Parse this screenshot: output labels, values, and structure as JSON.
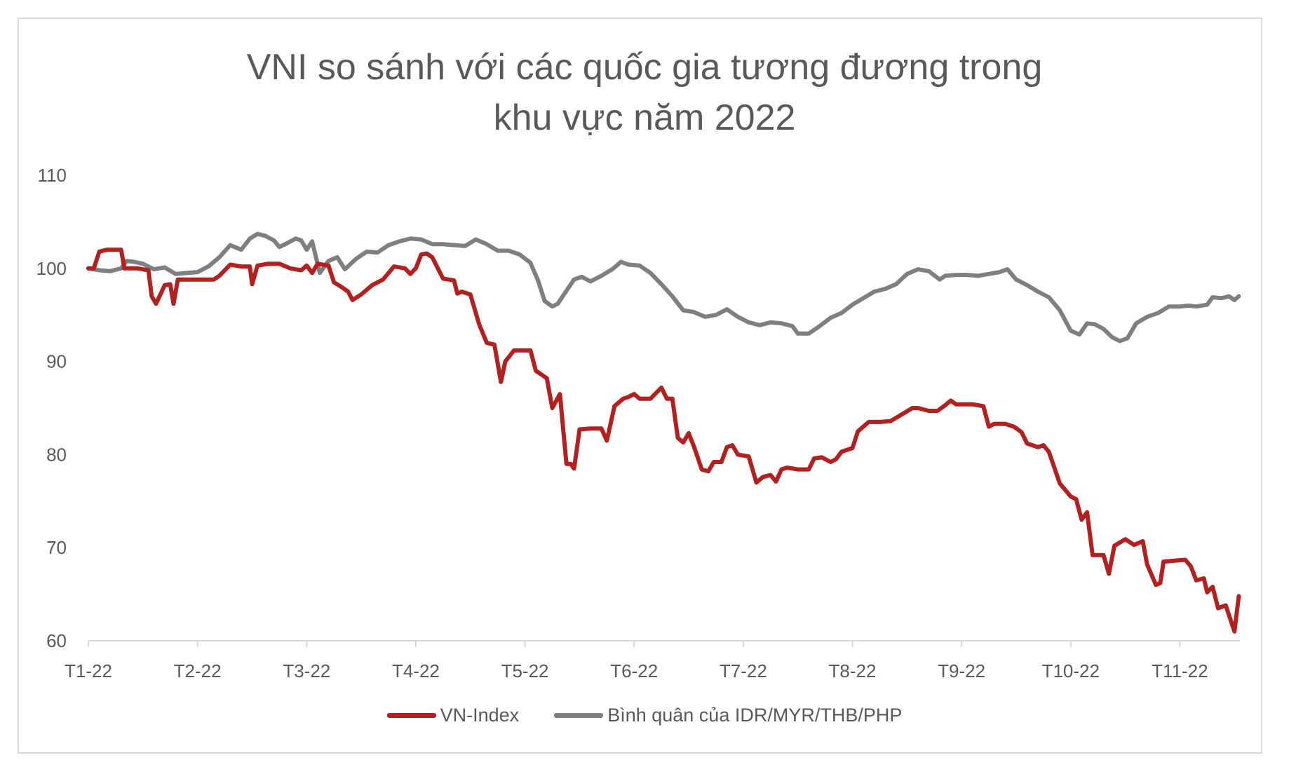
{
  "chart_data": {
    "type": "line",
    "title_lines": [
      "VNI so sánh với các quốc gia tương đương trong",
      "khu vực năm 2022"
    ],
    "xlabel": "",
    "ylabel": "",
    "ylim": [
      60,
      110
    ],
    "y_ticks": [
      60,
      70,
      80,
      90,
      100,
      110
    ],
    "x_range": [
      0,
      10.55
    ],
    "x_ticks": [
      {
        "pos": 0,
        "label": "T1-22"
      },
      {
        "pos": 1,
        "label": "T2-22"
      },
      {
        "pos": 2,
        "label": "T3-22"
      },
      {
        "pos": 3,
        "label": "T4-22"
      },
      {
        "pos": 4,
        "label": "T5-22"
      },
      {
        "pos": 5,
        "label": "T6-22"
      },
      {
        "pos": 6,
        "label": "T7-22"
      },
      {
        "pos": 7,
        "label": "T8-22"
      },
      {
        "pos": 8,
        "label": "T9-22"
      },
      {
        "pos": 9,
        "label": "T10-22"
      },
      {
        "pos": 10,
        "label": "T11-22"
      }
    ],
    "legend_position": "bottom",
    "series": [
      {
        "name": "VN-Index",
        "color": "#b2201f",
        "points": [
          [
            0,
            100
          ],
          [
            0.05,
            100
          ],
          [
            0.1,
            101.8
          ],
          [
            0.17,
            102
          ],
          [
            0.3,
            102
          ],
          [
            0.33,
            100
          ],
          [
            0.45,
            100
          ],
          [
            0.55,
            99.8
          ],
          [
            0.58,
            97
          ],
          [
            0.62,
            96.2
          ],
          [
            0.7,
            98.2
          ],
          [
            0.75,
            98.3
          ],
          [
            0.78,
            96.2
          ],
          [
            0.82,
            98.8
          ],
          [
            0.9,
            98.8
          ],
          [
            1.0,
            98.8
          ],
          [
            1.15,
            98.8
          ],
          [
            1.2,
            99.2
          ],
          [
            1.3,
            100.4
          ],
          [
            1.4,
            100.2
          ],
          [
            1.48,
            100.2
          ],
          [
            1.5,
            98.3
          ],
          [
            1.55,
            100.3
          ],
          [
            1.65,
            100.5
          ],
          [
            1.75,
            100.5
          ],
          [
            1.85,
            100
          ],
          [
            1.95,
            99.8
          ],
          [
            2.0,
            100.3
          ],
          [
            2.05,
            99.5
          ],
          [
            2.1,
            100.5
          ],
          [
            2.2,
            100.3
          ],
          [
            2.25,
            98.5
          ],
          [
            2.32,
            98
          ],
          [
            2.38,
            97.5
          ],
          [
            2.42,
            96.6
          ],
          [
            2.5,
            97.2
          ],
          [
            2.6,
            98.2
          ],
          [
            2.7,
            98.8
          ],
          [
            2.8,
            100.2
          ],
          [
            2.9,
            100
          ],
          [
            2.95,
            99.4
          ],
          [
            3.0,
            100
          ],
          [
            3.05,
            101.5
          ],
          [
            3.1,
            101.6
          ],
          [
            3.15,
            101.2
          ],
          [
            3.25,
            98.9
          ],
          [
            3.3,
            98.8
          ],
          [
            3.35,
            98.7
          ],
          [
            3.38,
            97.3
          ],
          [
            3.42,
            97.5
          ],
          [
            3.5,
            97.2
          ],
          [
            3.58,
            94
          ],
          [
            3.65,
            92
          ],
          [
            3.72,
            91.8
          ],
          [
            3.78,
            87.8
          ],
          [
            3.82,
            90
          ],
          [
            3.9,
            91.2
          ],
          [
            4.0,
            91.2
          ],
          [
            4.05,
            91.2
          ],
          [
            4.1,
            89
          ],
          [
            4.2,
            88.2
          ],
          [
            4.25,
            85
          ],
          [
            4.32,
            86.5
          ],
          [
            4.38,
            79
          ],
          [
            4.42,
            79
          ],
          [
            4.45,
            78.5
          ],
          [
            4.5,
            82.7
          ],
          [
            4.6,
            82.8
          ],
          [
            4.7,
            82.8
          ],
          [
            4.75,
            81.5
          ],
          [
            4.82,
            85.2
          ],
          [
            4.9,
            86
          ],
          [
            4.95,
            86.2
          ],
          [
            5.0,
            86.5
          ],
          [
            5.05,
            86
          ],
          [
            5.15,
            86
          ],
          [
            5.25,
            87.2
          ],
          [
            5.3,
            86
          ],
          [
            5.35,
            86
          ],
          [
            5.4,
            81.8
          ],
          [
            5.45,
            81.3
          ],
          [
            5.5,
            82.3
          ],
          [
            5.55,
            80.8
          ],
          [
            5.62,
            78.4
          ],
          [
            5.68,
            78.2
          ],
          [
            5.73,
            79.2
          ],
          [
            5.8,
            79.2
          ],
          [
            5.85,
            80.8
          ],
          [
            5.9,
            81
          ],
          [
            5.95,
            80
          ],
          [
            6.05,
            79.8
          ],
          [
            6.12,
            77
          ],
          [
            6.18,
            77.6
          ],
          [
            6.25,
            77.8
          ],
          [
            6.3,
            77.1
          ],
          [
            6.35,
            78.4
          ],
          [
            6.4,
            78.6
          ],
          [
            6.5,
            78.4
          ],
          [
            6.6,
            78.4
          ],
          [
            6.65,
            79.6
          ],
          [
            6.72,
            79.7
          ],
          [
            6.8,
            79.2
          ],
          [
            6.85,
            79.5
          ],
          [
            6.9,
            80.3
          ],
          [
            7.0,
            80.7
          ],
          [
            7.05,
            82.5
          ],
          [
            7.15,
            83.5
          ],
          [
            7.25,
            83.5
          ],
          [
            7.35,
            83.6
          ],
          [
            7.45,
            84.3
          ],
          [
            7.55,
            85
          ],
          [
            7.6,
            85
          ],
          [
            7.7,
            84.7
          ],
          [
            7.78,
            84.7
          ],
          [
            7.85,
            85.3
          ],
          [
            7.9,
            85.8
          ],
          [
            7.95,
            85.4
          ],
          [
            8.0,
            85.4
          ],
          [
            8.1,
            85.4
          ],
          [
            8.15,
            85.3
          ],
          [
            8.2,
            85.2
          ],
          [
            8.25,
            83
          ],
          [
            8.3,
            83.3
          ],
          [
            8.4,
            83.3
          ],
          [
            8.48,
            83
          ],
          [
            8.55,
            82.4
          ],
          [
            8.6,
            81.2
          ],
          [
            8.7,
            80.8
          ],
          [
            8.75,
            81
          ],
          [
            8.8,
            80.3
          ],
          [
            8.9,
            76.9
          ],
          [
            9.0,
            75.5
          ],
          [
            9.05,
            75.2
          ],
          [
            9.1,
            73
          ],
          [
            9.15,
            73.8
          ],
          [
            9.2,
            69.2
          ],
          [
            9.3,
            69.2
          ],
          [
            9.35,
            67.2
          ],
          [
            9.4,
            70.2
          ],
          [
            9.5,
            70.9
          ],
          [
            9.58,
            70.3
          ],
          [
            9.62,
            70.5
          ],
          [
            9.66,
            70.7
          ],
          [
            9.7,
            68.2
          ],
          [
            9.78,
            66
          ],
          [
            9.82,
            66.2
          ],
          [
            9.85,
            68.5
          ],
          [
            9.95,
            68.6
          ],
          [
            10.05,
            68.7
          ],
          [
            10.1,
            68
          ],
          [
            10.15,
            66.5
          ],
          [
            10.22,
            66.7
          ],
          [
            10.25,
            65.2
          ],
          [
            10.3,
            65.8
          ],
          [
            10.35,
            63.5
          ],
          [
            10.42,
            63.8
          ],
          [
            10.5,
            61
          ],
          [
            10.54,
            64.8
          ]
        ]
      },
      {
        "name": "Bình quân của IDR/MYR/THB/PHP",
        "color": "#7f7f7f",
        "points": [
          [
            0,
            100
          ],
          [
            0.1,
            99.8
          ],
          [
            0.2,
            99.7
          ],
          [
            0.3,
            100
          ],
          [
            0.35,
            100.8
          ],
          [
            0.42,
            100.7
          ],
          [
            0.5,
            100.5
          ],
          [
            0.6,
            99.9
          ],
          [
            0.7,
            100.1
          ],
          [
            0.8,
            99.4
          ],
          [
            0.9,
            99.5
          ],
          [
            1.0,
            99.6
          ],
          [
            1.1,
            100.2
          ],
          [
            1.2,
            101.2
          ],
          [
            1.3,
            102.5
          ],
          [
            1.4,
            102
          ],
          [
            1.48,
            103.2
          ],
          [
            1.55,
            103.7
          ],
          [
            1.62,
            103.5
          ],
          [
            1.7,
            103
          ],
          [
            1.75,
            102.3
          ],
          [
            1.82,
            102.7
          ],
          [
            1.9,
            103.2
          ],
          [
            1.95,
            103
          ],
          [
            2.0,
            102
          ],
          [
            2.05,
            102.9
          ],
          [
            2.12,
            99.5
          ],
          [
            2.2,
            100.8
          ],
          [
            2.28,
            101.2
          ],
          [
            2.35,
            99.9
          ],
          [
            2.45,
            101
          ],
          [
            2.55,
            101.8
          ],
          [
            2.65,
            101.7
          ],
          [
            2.75,
            102.5
          ],
          [
            2.85,
            102.9
          ],
          [
            2.95,
            103.2
          ],
          [
            3.05,
            103.1
          ],
          [
            3.15,
            102.6
          ],
          [
            3.25,
            102.6
          ],
          [
            3.35,
            102.5
          ],
          [
            3.45,
            102.4
          ],
          [
            3.55,
            103.1
          ],
          [
            3.65,
            102.6
          ],
          [
            3.75,
            101.9
          ],
          [
            3.85,
            101.9
          ],
          [
            3.95,
            101.5
          ],
          [
            4.05,
            100.6
          ],
          [
            4.12,
            98.7
          ],
          [
            4.18,
            96.5
          ],
          [
            4.25,
            95.9
          ],
          [
            4.3,
            96.2
          ],
          [
            4.38,
            97.6
          ],
          [
            4.45,
            98.8
          ],
          [
            4.52,
            99.1
          ],
          [
            4.6,
            98.6
          ],
          [
            4.7,
            99.2
          ],
          [
            4.8,
            99.9
          ],
          [
            4.88,
            100.7
          ],
          [
            4.95,
            100.4
          ],
          [
            5.05,
            100.3
          ],
          [
            5.15,
            99.5
          ],
          [
            5.25,
            98.3
          ],
          [
            5.35,
            97
          ],
          [
            5.45,
            95.5
          ],
          [
            5.55,
            95.3
          ],
          [
            5.65,
            94.8
          ],
          [
            5.75,
            95
          ],
          [
            5.85,
            95.6
          ],
          [
            5.95,
            94.8
          ],
          [
            6.05,
            94.2
          ],
          [
            6.15,
            93.9
          ],
          [
            6.25,
            94.2
          ],
          [
            6.35,
            94.1
          ],
          [
            6.45,
            93.8
          ],
          [
            6.5,
            93
          ],
          [
            6.6,
            93
          ],
          [
            6.7,
            93.8
          ],
          [
            6.8,
            94.7
          ],
          [
            6.9,
            95.2
          ],
          [
            7.0,
            96.1
          ],
          [
            7.1,
            96.8
          ],
          [
            7.2,
            97.5
          ],
          [
            7.3,
            97.8
          ],
          [
            7.4,
            98.3
          ],
          [
            7.5,
            99.4
          ],
          [
            7.6,
            99.9
          ],
          [
            7.7,
            99.7
          ],
          [
            7.8,
            98.8
          ],
          [
            7.85,
            99.2
          ],
          [
            7.95,
            99.3
          ],
          [
            8.05,
            99.3
          ],
          [
            8.15,
            99.2
          ],
          [
            8.25,
            99.4
          ],
          [
            8.35,
            99.6
          ],
          [
            8.42,
            99.9
          ],
          [
            8.5,
            98.8
          ],
          [
            8.6,
            98.2
          ],
          [
            8.7,
            97.5
          ],
          [
            8.8,
            96.9
          ],
          [
            8.9,
            95.5
          ],
          [
            9.0,
            93.3
          ],
          [
            9.08,
            92.9
          ],
          [
            9.15,
            94.1
          ],
          [
            9.22,
            94
          ],
          [
            9.3,
            93.5
          ],
          [
            9.38,
            92.6
          ],
          [
            9.45,
            92.2
          ],
          [
            9.52,
            92.5
          ],
          [
            9.6,
            94.1
          ],
          [
            9.7,
            94.8
          ],
          [
            9.8,
            95.2
          ],
          [
            9.9,
            95.9
          ],
          [
            10.0,
            95.9
          ],
          [
            10.08,
            96
          ],
          [
            10.15,
            95.9
          ],
          [
            10.25,
            96.1
          ],
          [
            10.3,
            96.9
          ],
          [
            10.38,
            96.8
          ],
          [
            10.45,
            97
          ],
          [
            10.5,
            96.6
          ],
          [
            10.54,
            97
          ]
        ]
      }
    ]
  }
}
